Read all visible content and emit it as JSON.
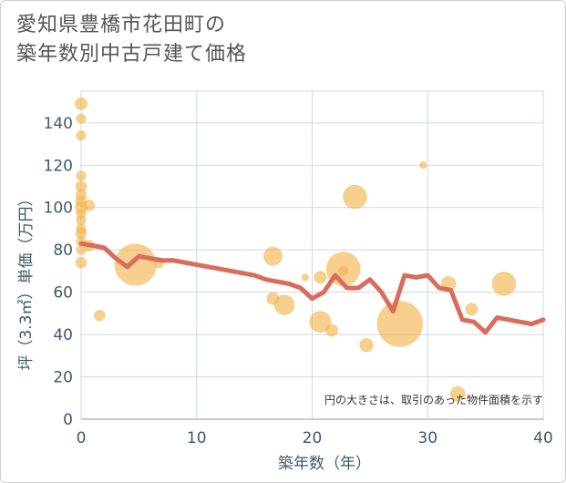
{
  "title_line1": "愛知県豊橋市花田町の",
  "title_line2": "築年数別中古戸建て価格",
  "chart_data": {
    "type": "scatter",
    "title": "愛知県豊橋市花田町の築年数別中古戸建て価格",
    "xlabel": "築年数（年）",
    "ylabel": "坪（3.3㎡）単価（万円）",
    "xlim": [
      0,
      40
    ],
    "ylim": [
      0,
      155
    ],
    "xticks": [
      0,
      10,
      20,
      30,
      40
    ],
    "yticks": [
      0,
      20,
      40,
      60,
      80,
      100,
      120,
      140
    ],
    "grid": true,
    "note": "円の大きさは、取引のあった物件面積を示す",
    "colors": {
      "bubble": "#f2b552",
      "line": "#d96d5c",
      "grid": "#cfd8e3",
      "text": "#3d5a6a"
    },
    "points": [
      {
        "x": 0,
        "y": 149,
        "size": 1.0
      },
      {
        "x": 0,
        "y": 142,
        "size": 0.8
      },
      {
        "x": 0,
        "y": 134,
        "size": 0.8
      },
      {
        "x": 0,
        "y": 115,
        "size": 0.8
      },
      {
        "x": 0,
        "y": 110,
        "size": 0.9
      },
      {
        "x": 0,
        "y": 106,
        "size": 0.9
      },
      {
        "x": 0,
        "y": 103,
        "size": 0.9
      },
      {
        "x": 0,
        "y": 100,
        "size": 1.0
      },
      {
        "x": 0,
        "y": 97,
        "size": 0.8
      },
      {
        "x": 0,
        "y": 94,
        "size": 0.8
      },
      {
        "x": 0,
        "y": 90,
        "size": 0.8
      },
      {
        "x": 0,
        "y": 88,
        "size": 0.9
      },
      {
        "x": 0,
        "y": 84,
        "size": 0.8
      },
      {
        "x": 0,
        "y": 80,
        "size": 0.8
      },
      {
        "x": 0,
        "y": 74,
        "size": 0.9
      },
      {
        "x": 0.7,
        "y": 101,
        "size": 0.9
      },
      {
        "x": 0.7,
        "y": 82,
        "size": 0.9
      },
      {
        "x": 1.6,
        "y": 49,
        "size": 0.9
      },
      {
        "x": 4.7,
        "y": 73,
        "size": 3.3
      },
      {
        "x": 6.7,
        "y": 74,
        "size": 0.9
      },
      {
        "x": 16.6,
        "y": 77,
        "size": 1.5
      },
      {
        "x": 16.6,
        "y": 57,
        "size": 1.0
      },
      {
        "x": 17.6,
        "y": 54,
        "size": 1.6
      },
      {
        "x": 19.4,
        "y": 67,
        "size": 0.6
      },
      {
        "x": 20.7,
        "y": 46,
        "size": 1.7
      },
      {
        "x": 20.7,
        "y": 67,
        "size": 1.0
      },
      {
        "x": 21.7,
        "y": 42,
        "size": 1.0
      },
      {
        "x": 22.7,
        "y": 71,
        "size": 2.7
      },
      {
        "x": 22.7,
        "y": 70,
        "size": 0.8
      },
      {
        "x": 23.7,
        "y": 105,
        "size": 1.9
      },
      {
        "x": 24.7,
        "y": 35,
        "size": 1.1
      },
      {
        "x": 27.6,
        "y": 45,
        "size": 3.6
      },
      {
        "x": 29.6,
        "y": 120,
        "size": 0.6
      },
      {
        "x": 31.8,
        "y": 64,
        "size": 1.2
      },
      {
        "x": 32.6,
        "y": 12,
        "size": 1.2
      },
      {
        "x": 33.8,
        "y": 52,
        "size": 1.0
      },
      {
        "x": 36.6,
        "y": 64,
        "size": 1.9
      }
    ],
    "trend": {
      "x": [
        0,
        1,
        2,
        3,
        4,
        5,
        6,
        7,
        8,
        9,
        10,
        11,
        12,
        13,
        14,
        15,
        16,
        17,
        18,
        19,
        20,
        21,
        22,
        23,
        24,
        25,
        26,
        27,
        28,
        29,
        30,
        31,
        32,
        33,
        34,
        35,
        36,
        37,
        38,
        39,
        40
      ],
      "y": [
        83,
        82,
        81,
        76,
        72,
        77,
        76,
        75,
        75,
        74,
        73,
        72,
        71,
        70,
        69,
        68,
        66,
        65,
        64,
        62,
        57,
        60,
        68,
        62,
        62,
        66,
        60,
        51,
        68,
        67,
        68,
        62,
        61,
        47,
        46,
        41,
        48,
        47,
        46,
        45,
        47
      ]
    }
  }
}
